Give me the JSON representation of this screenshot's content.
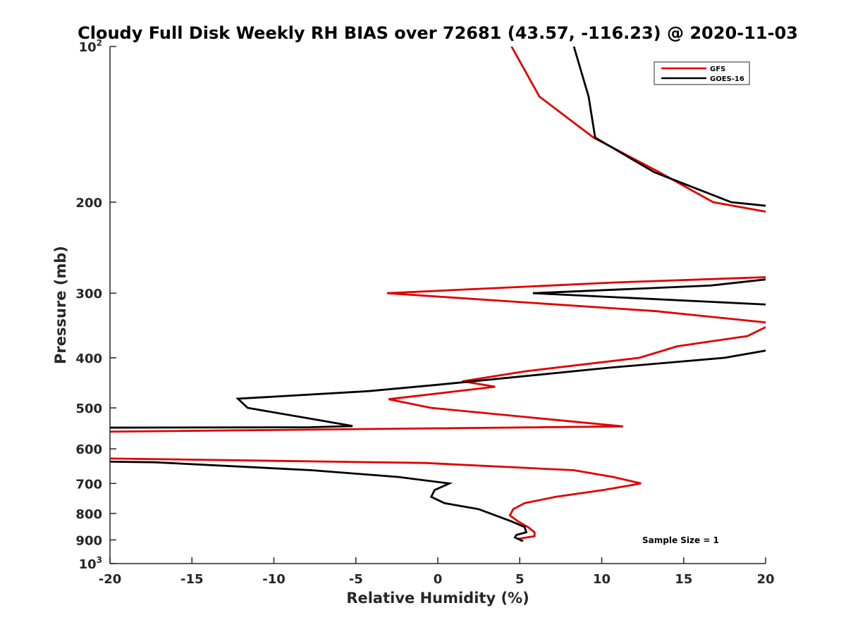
{
  "chart_data": {
    "type": "line",
    "title": "Cloudy Full Disk Weekly RH BIAS over 72681 (43.57, -116.23) @ 2020-11-03",
    "xlabel": "Relative Humidity (%)",
    "ylabel": "Pressure (mb)",
    "xlim": [
      -20,
      20
    ],
    "ylim": [
      100,
      1000
    ],
    "y_scale": "log",
    "y_reversed": true,
    "x_ticks": [
      "-20",
      "-15",
      "-10",
      "-5",
      "0",
      "5",
      "10",
      "15",
      "20"
    ],
    "y_ticks": [
      {
        "value": 100,
        "base": "10",
        "exp": "2"
      },
      {
        "value": 200,
        "label": "200"
      },
      {
        "value": 300,
        "label": "300"
      },
      {
        "value": 400,
        "label": "400"
      },
      {
        "value": 500,
        "label": "500"
      },
      {
        "value": 600,
        "label": "600"
      },
      {
        "value": 700,
        "label": "700"
      },
      {
        "value": 800,
        "label": "800"
      },
      {
        "value": 900,
        "label": "900"
      },
      {
        "value": 1000,
        "base": "10",
        "exp": "3"
      }
    ],
    "grid": false,
    "legend_position": "top-right",
    "annotation": "Sample Size = 1",
    "series": [
      {
        "name": "GFS",
        "color": "#e00000",
        "points": [
          [
            4.5,
            100
          ],
          [
            6.2,
            125
          ],
          [
            9.5,
            150
          ],
          [
            13.5,
            175
          ],
          [
            16.8,
            200
          ],
          [
            20.5,
            210
          ],
          [
            20.5,
            279
          ],
          [
            10.8,
            286
          ],
          [
            -3.1,
            300
          ],
          [
            13.3,
            325
          ],
          [
            20.5,
            343
          ],
          [
            20,
            349
          ],
          [
            18.9,
            363
          ],
          [
            14.6,
            380
          ],
          [
            12.3,
            400
          ],
          [
            5.3,
            425
          ],
          [
            1.5,
            444
          ],
          [
            3.5,
            455
          ],
          [
            -3.0,
            481
          ],
          [
            -0.4,
            500
          ],
          [
            11.3,
            543
          ],
          [
            -20.5,
            556
          ],
          [
            -20.5,
            626
          ],
          [
            -0.8,
            639
          ],
          [
            8.3,
            660
          ],
          [
            10.7,
            680
          ],
          [
            12.4,
            700
          ],
          [
            10.2,
            720
          ],
          [
            7.2,
            743
          ],
          [
            5.3,
            764
          ],
          [
            4.6,
            785
          ],
          [
            4.4,
            807
          ],
          [
            4.9,
            829
          ],
          [
            5.5,
            850
          ],
          [
            5.9,
            870
          ],
          [
            5.9,
            885
          ],
          [
            5.0,
            895
          ],
          [
            5.1,
            905
          ]
        ]
      },
      {
        "name": "GOES-16",
        "color": "#000000",
        "points": [
          [
            8.3,
            100
          ],
          [
            9.2,
            125
          ],
          [
            9.6,
            150
          ],
          [
            13.2,
            175
          ],
          [
            17.9,
            200
          ],
          [
            20.5,
            204
          ],
          [
            20.5,
            281
          ],
          [
            16.6,
            290
          ],
          [
            5.8,
            300
          ],
          [
            20.5,
            316
          ],
          [
            20.5,
            385
          ],
          [
            17.5,
            400
          ],
          [
            10.5,
            418
          ],
          [
            0.0,
            451
          ],
          [
            -4.2,
            464
          ],
          [
            -12.2,
            480
          ],
          [
            -11.6,
            500
          ],
          [
            -7.7,
            525
          ],
          [
            -5.2,
            542
          ],
          [
            -7.8,
            545
          ],
          [
            -20.5,
            546
          ],
          [
            -20.5,
            635
          ],
          [
            -17.3,
            637
          ],
          [
            -7.7,
            660
          ],
          [
            -2.4,
            680
          ],
          [
            0.7,
            700
          ],
          [
            -0.2,
            721
          ],
          [
            -0.4,
            743
          ],
          [
            0.4,
            764
          ],
          [
            2.5,
            785
          ],
          [
            4.5,
            829
          ],
          [
            5.3,
            850
          ],
          [
            5.4,
            870
          ],
          [
            4.8,
            880
          ],
          [
            4.7,
            890
          ],
          [
            5.2,
            905
          ]
        ]
      }
    ]
  }
}
